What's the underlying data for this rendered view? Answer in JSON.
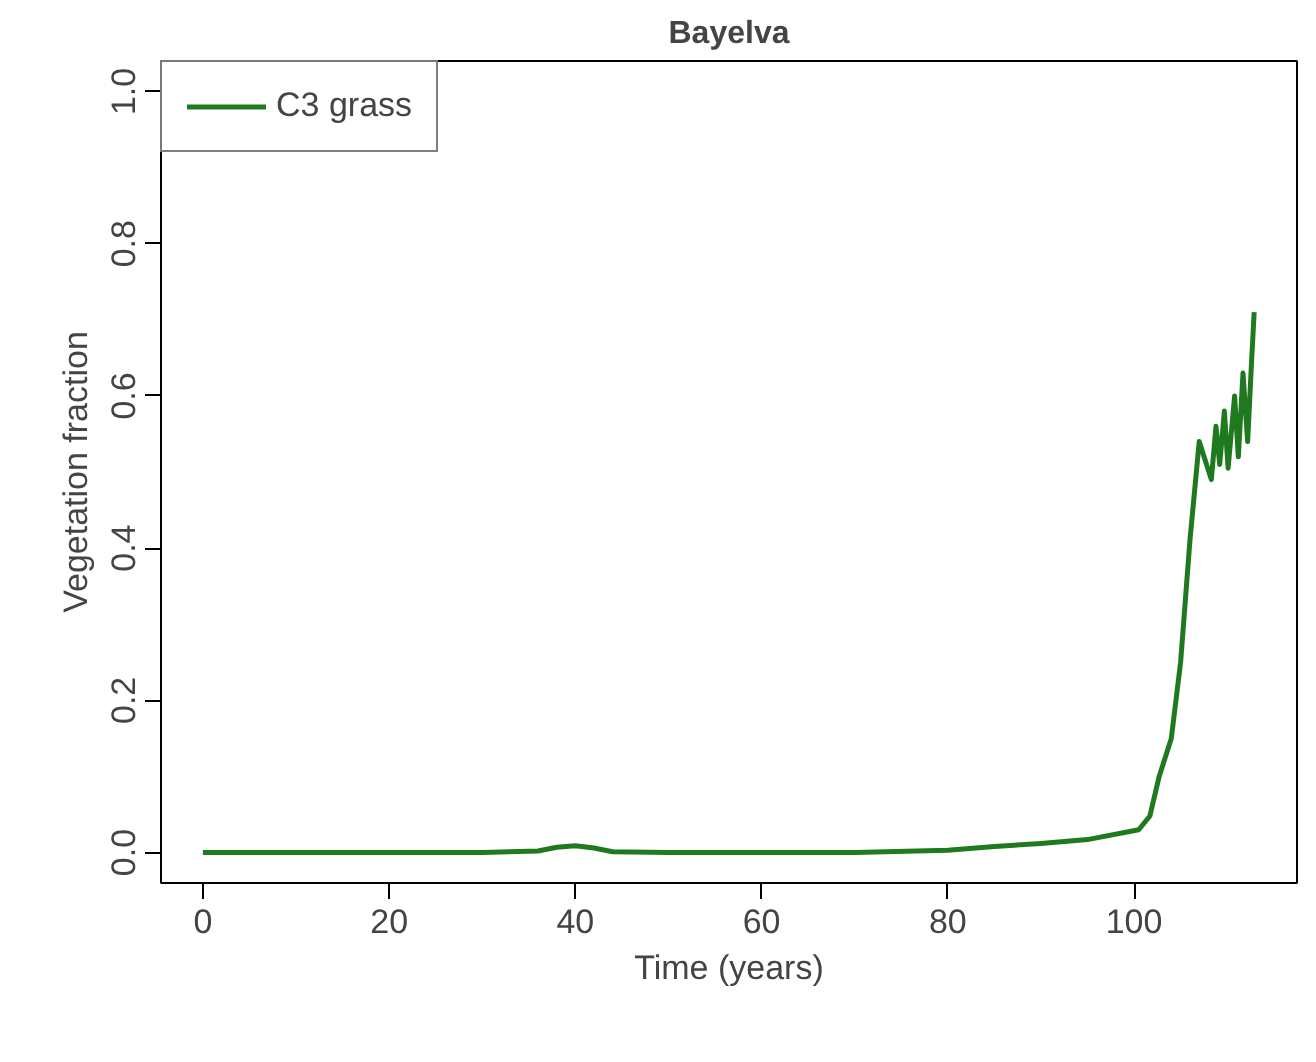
{
  "chart_data": {
    "type": "line",
    "title": "Bayelva",
    "xlabel": "Time (years)",
    "ylabel": "Vegetation fraction",
    "xlim": [
      -4.5,
      117.5
    ],
    "ylim": [
      -0.04,
      1.04
    ],
    "xticks": [
      0,
      20,
      40,
      60,
      80,
      100
    ],
    "yticks": [
      {
        "value": 0,
        "label": "0.0"
      },
      {
        "value": 0.2,
        "label": "0.2"
      },
      {
        "value": 0.4,
        "label": "0.4"
      },
      {
        "value": 0.6,
        "label": "0.6"
      },
      {
        "value": 0.8,
        "label": "0.8"
      },
      {
        "value": 1,
        "label": "1.0"
      }
    ],
    "grid": false,
    "legend": "top left",
    "marker": "none",
    "line_style": "solid",
    "series": [
      {
        "name": "C3 grass",
        "color": "#1f7a1f",
        "x": [
          0,
          10,
          20,
          30,
          36,
          38,
          40,
          42,
          44,
          50,
          60,
          70,
          80,
          85,
          90,
          95,
          100.5,
          101.7,
          102.7,
          104,
          105,
          106,
          107,
          108.3,
          108.8,
          109.2,
          109.7,
          110.1,
          110.8,
          111.2,
          111.7,
          112.2,
          112.6,
          112.9
        ],
        "values": [
          0,
          0,
          0,
          0,
          0.002,
          0.007,
          0.009,
          0.006,
          0.001,
          0,
          0,
          0,
          0.003,
          0.008,
          0.012,
          0.017,
          0.03,
          0.048,
          0.1,
          0.15,
          0.25,
          0.41,
          0.54,
          0.49,
          0.56,
          0.51,
          0.58,
          0.505,
          0.6,
          0.52,
          0.63,
          0.54,
          0.64,
          0.71
        ]
      }
    ]
  }
}
